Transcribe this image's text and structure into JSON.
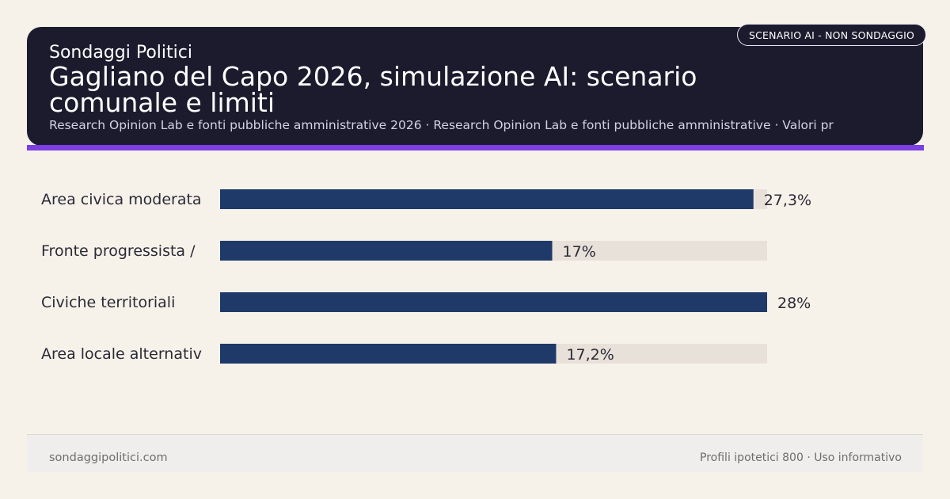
{
  "header": {
    "brand": "Sondaggi Politici",
    "title": "Gagliano del Capo 2026, simulazione AI: scenario comunale e limiti",
    "subtitle": "Research Opinion Lab e fonti pubbliche amministrative 2026 · Research Opinion Lab e fonti pubbliche amministrative · Valori pr",
    "badge": "SCENARIO AI - NON SONDAGGIO"
  },
  "colors": {
    "header_bg": "#1c1b2e",
    "accent": "#7b3fe4",
    "bar": "#1f3a68",
    "track": "#e8e1da",
    "page_bg": "#f6f2ea"
  },
  "chart_data": {
    "type": "bar",
    "orientation": "horizontal",
    "categories": [
      "Area civica moderata",
      "Fronte progressista /",
      "Civiche territoriali",
      "Area locale alternativ"
    ],
    "values": [
      27.3,
      17,
      28,
      17.2
    ],
    "value_labels": [
      "27,3%",
      "17%",
      "28%",
      "17,2%"
    ],
    "xlim": [
      0,
      28
    ],
    "grid": false,
    "legend": "none"
  },
  "footer": {
    "site": "sondaggipolitici.com",
    "note": "Profili ipotetici 800 · Uso informativo"
  }
}
